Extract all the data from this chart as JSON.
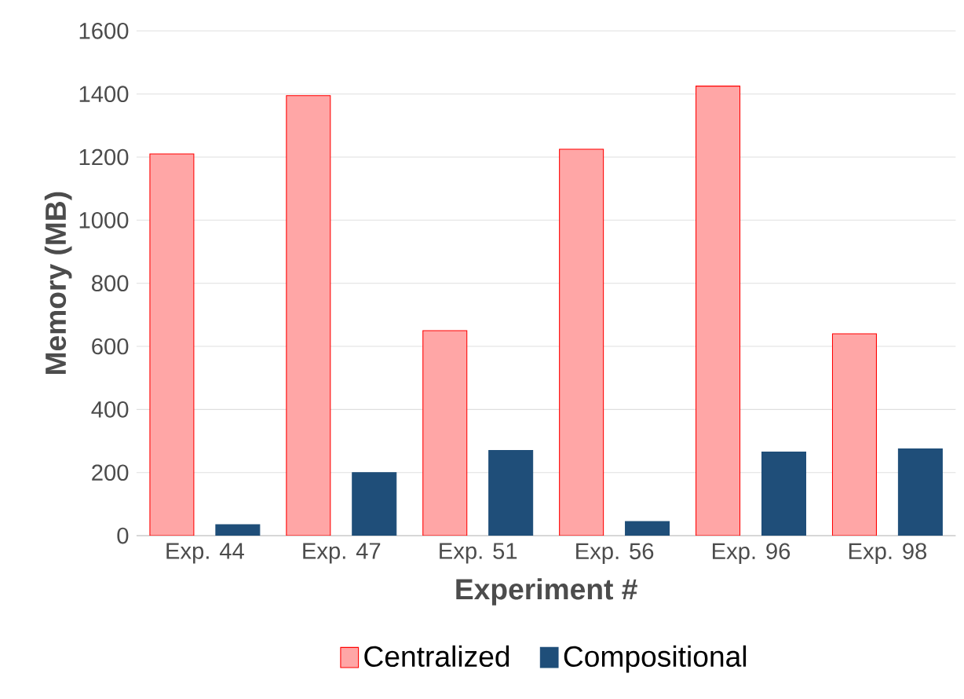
{
  "chart_data": {
    "type": "bar",
    "xlabel": "Experiment #",
    "ylabel": "Memory (MB)",
    "categories": [
      "Exp. 44",
      "Exp. 47",
      "Exp. 51",
      "Exp. 56",
      "Exp. 96",
      "Exp. 98"
    ],
    "series": [
      {
        "name": "Centralized",
        "color": "#ffa6a6",
        "values": [
          1210,
          1395,
          650,
          1225,
          1425,
          640
        ]
      },
      {
        "name": "Compositional",
        "color": "#1f4e79",
        "values": [
          35,
          200,
          270,
          45,
          265,
          275
        ]
      }
    ],
    "ylim": [
      0,
      1600
    ],
    "yticks": [
      0,
      200,
      400,
      600,
      800,
      1000,
      1200,
      1400,
      1600
    ],
    "grid": "y",
    "legend": "bottom"
  }
}
